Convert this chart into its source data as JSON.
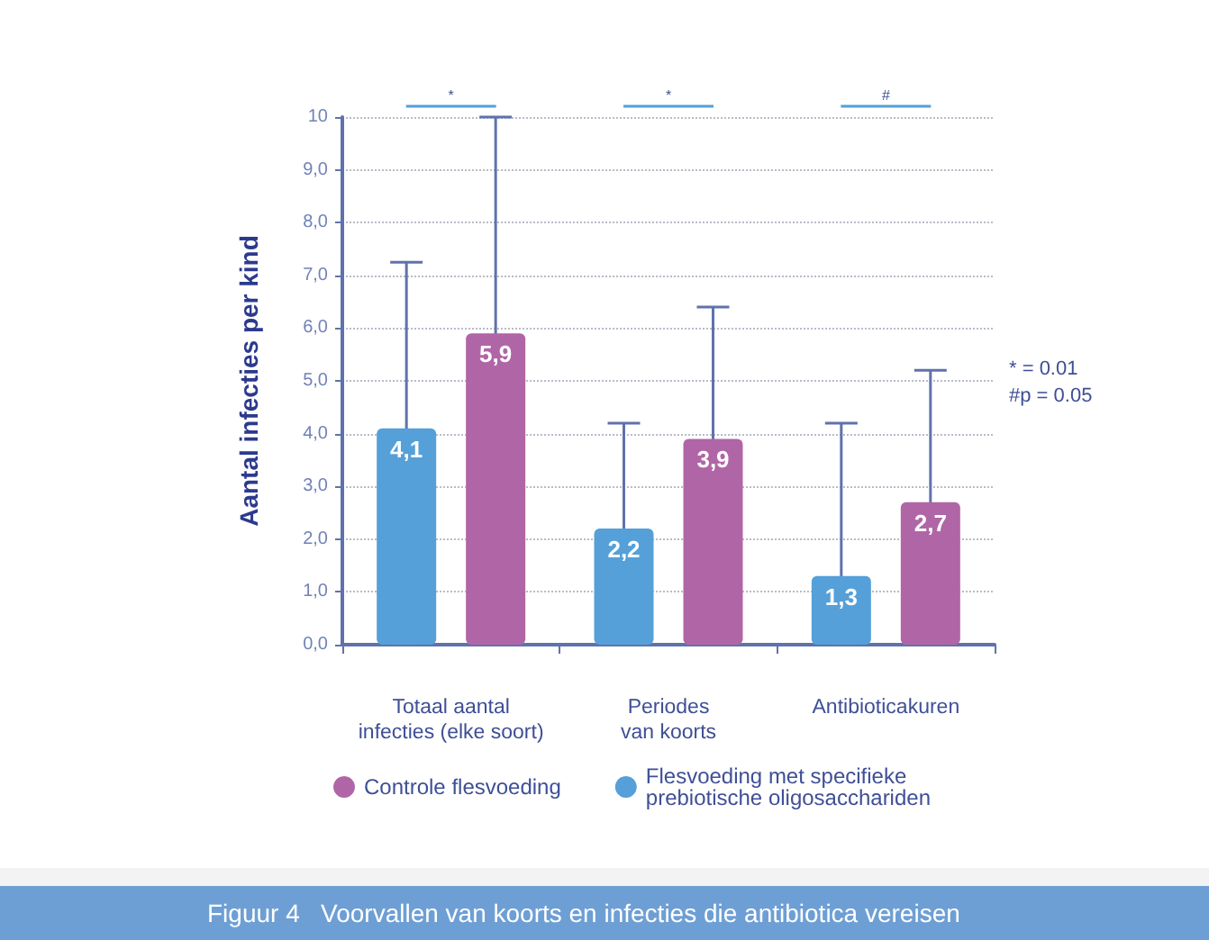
{
  "chart_data": {
    "type": "bar",
    "title": "Figuur 4   Voorvallen van koorts en infecties die antibiotica vereisen",
    "ylabel": "Aantal infecties per kind",
    "categories": [
      "Totaal aantal\ninfecties (elke soort)",
      "Periodes\nvan koorts",
      "Antibioticakuren"
    ],
    "series": [
      {
        "name": "Flesvoeding met specifieke\nprebiotische oligosacchariden",
        "color": "#55a0d8",
        "values": [
          4.1,
          2.2,
          1.3
        ],
        "errors": [
          [
            0,
            7.25
          ],
          [
            0,
            4.2
          ],
          [
            0,
            4.2
          ]
        ]
      },
      {
        "name": "Controle flesvoeding",
        "color": "#b066a6",
        "values": [
          5.9,
          3.9,
          2.7
        ],
        "errors": [
          [
            0,
            10
          ],
          [
            0,
            6.4
          ],
          [
            0,
            5.2
          ]
        ]
      }
    ],
    "ylim": [
      0,
      10
    ],
    "yticks": [
      {
        "value": 0,
        "label": "0,0"
      },
      {
        "value": 1,
        "label": "1,0"
      },
      {
        "value": 2,
        "label": "2,0"
      },
      {
        "value": 3,
        "label": "3,0"
      },
      {
        "value": 4,
        "label": "4,0"
      },
      {
        "value": 5,
        "label": "5,0"
      },
      {
        "value": 6,
        "label": "6,0"
      },
      {
        "value": 7,
        "label": "7,0"
      },
      {
        "value": 8,
        "label": "8,0"
      },
      {
        "value": 9,
        "label": "9,0"
      },
      {
        "value": 10,
        "label": "10"
      }
    ],
    "value_labels": [
      [
        "4,1",
        "2,2",
        "1,3"
      ],
      [
        "5,9",
        "3,9",
        "2,7"
      ]
    ],
    "annotations": [
      "*",
      "*",
      "#",
      "* = 0.01",
      "#p = 0.05"
    ],
    "grid": "y",
    "legend": "bottom left"
  }
}
